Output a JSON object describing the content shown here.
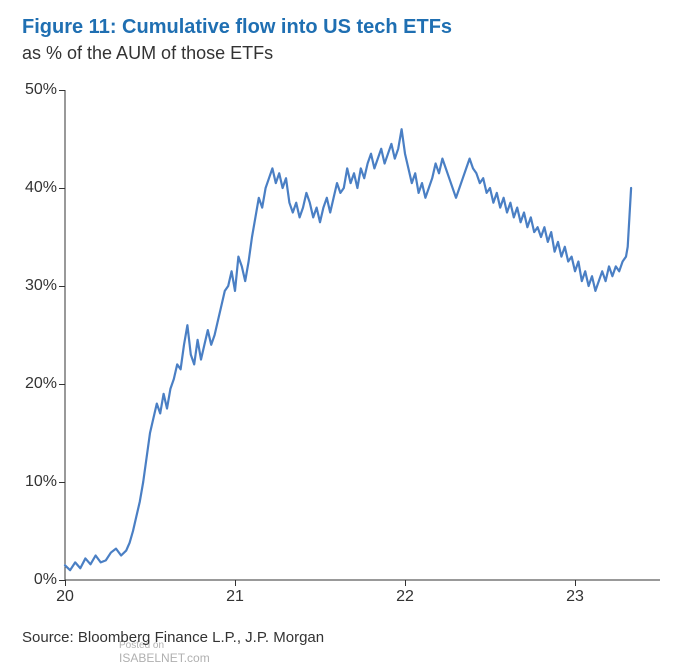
{
  "title": "Figure 11: Cumulative flow into US tech ETFs",
  "subtitle": "as % of the AUM of those ETFs",
  "source": "Source: Bloomberg Finance L.P., J.P. Morgan",
  "watermark": {
    "line1": "Posted on",
    "line2": "ISABELNET.com"
  },
  "chart": {
    "type": "line",
    "background_color": "#ffffff",
    "title_color": "#1f6fb2",
    "title_fontsize": 20,
    "subtitle_fontsize": 18,
    "axis_color": "#333333",
    "line_color": "#4a7fc4",
    "line_width": 2.2,
    "xlim": [
      20.0,
      23.5
    ],
    "ylim": [
      0,
      50
    ],
    "y_ticks": [
      0,
      10,
      20,
      30,
      40,
      50
    ],
    "y_tick_labels": [
      "0%",
      "10%",
      "20%",
      "30%",
      "40%",
      "50%"
    ],
    "x_ticks": [
      20,
      21,
      22,
      23
    ],
    "x_tick_labels": [
      "20",
      "21",
      "22",
      "23"
    ],
    "series": {
      "x": [
        20.0,
        20.03,
        20.06,
        20.09,
        20.12,
        20.15,
        20.18,
        20.21,
        20.24,
        20.27,
        20.3,
        20.33,
        20.36,
        20.38,
        20.4,
        20.42,
        20.44,
        20.46,
        20.48,
        20.5,
        20.52,
        20.54,
        20.56,
        20.58,
        20.6,
        20.62,
        20.64,
        20.66,
        20.68,
        20.7,
        20.72,
        20.74,
        20.76,
        20.78,
        20.8,
        20.82,
        20.84,
        20.86,
        20.88,
        20.9,
        20.92,
        20.94,
        20.96,
        20.98,
        21.0,
        21.02,
        21.04,
        21.06,
        21.08,
        21.1,
        21.12,
        21.14,
        21.16,
        21.18,
        21.2,
        21.22,
        21.24,
        21.26,
        21.28,
        21.3,
        21.32,
        21.34,
        21.36,
        21.38,
        21.4,
        21.42,
        21.44,
        21.46,
        21.48,
        21.5,
        21.52,
        21.54,
        21.56,
        21.58,
        21.6,
        21.62,
        21.64,
        21.66,
        21.68,
        21.7,
        21.72,
        21.74,
        21.76,
        21.78,
        21.8,
        21.82,
        21.84,
        21.86,
        21.88,
        21.9,
        21.92,
        21.94,
        21.96,
        21.98,
        22.0,
        22.02,
        22.04,
        22.06,
        22.08,
        22.1,
        22.12,
        22.14,
        22.16,
        22.18,
        22.2,
        22.22,
        22.24,
        22.26,
        22.28,
        22.3,
        22.32,
        22.34,
        22.36,
        22.38,
        22.4,
        22.42,
        22.44,
        22.46,
        22.48,
        22.5,
        22.52,
        22.54,
        22.56,
        22.58,
        22.6,
        22.62,
        22.64,
        22.66,
        22.68,
        22.7,
        22.72,
        22.74,
        22.76,
        22.78,
        22.8,
        22.82,
        22.84,
        22.86,
        22.88,
        22.9,
        22.92,
        22.94,
        22.96,
        22.98,
        23.0,
        23.02,
        23.04,
        23.06,
        23.08,
        23.1,
        23.12,
        23.14,
        23.16,
        23.18,
        23.2,
        23.22,
        23.24,
        23.26,
        23.28,
        23.3,
        23.31,
        23.32,
        23.33
      ],
      "y": [
        1.5,
        1.0,
        1.8,
        1.2,
        2.2,
        1.6,
        2.5,
        1.8,
        2.0,
        2.8,
        3.2,
        2.5,
        3.0,
        3.8,
        5.0,
        6.5,
        8.0,
        10.0,
        12.5,
        15.0,
        16.5,
        18.0,
        17.0,
        19.0,
        17.5,
        19.5,
        20.5,
        22.0,
        21.5,
        24.0,
        26.0,
        23.0,
        22.0,
        24.5,
        22.5,
        24.0,
        25.5,
        24.0,
        25.0,
        26.5,
        28.0,
        29.5,
        30.0,
        31.5,
        29.5,
        33.0,
        32.0,
        30.5,
        32.5,
        35.0,
        37.0,
        39.0,
        38.0,
        40.0,
        41.0,
        42.0,
        40.5,
        41.5,
        40.0,
        41.0,
        38.5,
        37.5,
        38.5,
        37.0,
        38.0,
        39.5,
        38.5,
        37.0,
        38.0,
        36.5,
        38.0,
        39.0,
        37.5,
        39.0,
        40.5,
        39.5,
        40.0,
        42.0,
        40.5,
        41.5,
        40.0,
        42.0,
        41.0,
        42.5,
        43.5,
        42.0,
        43.0,
        44.0,
        42.5,
        43.5,
        44.5,
        43.0,
        44.0,
        46.0,
        43.5,
        42.0,
        40.5,
        41.5,
        39.5,
        40.5,
        39.0,
        40.0,
        41.0,
        42.5,
        41.5,
        43.0,
        42.0,
        41.0,
        40.0,
        39.0,
        40.0,
        41.0,
        42.0,
        43.0,
        42.0,
        41.5,
        40.5,
        41.0,
        39.5,
        40.0,
        38.5,
        39.5,
        38.0,
        39.0,
        37.5,
        38.5,
        37.0,
        38.0,
        36.5,
        37.5,
        36.0,
        37.0,
        35.5,
        36.0,
        35.0,
        36.0,
        34.5,
        35.5,
        33.5,
        34.5,
        33.0,
        34.0,
        32.5,
        33.0,
        31.5,
        32.5,
        30.5,
        31.5,
        30.0,
        31.0,
        29.5,
        30.5,
        31.5,
        30.5,
        32.0,
        31.0,
        32.0,
        31.5,
        32.5,
        33.0,
        34.0,
        37.0,
        40.0
      ]
    }
  }
}
